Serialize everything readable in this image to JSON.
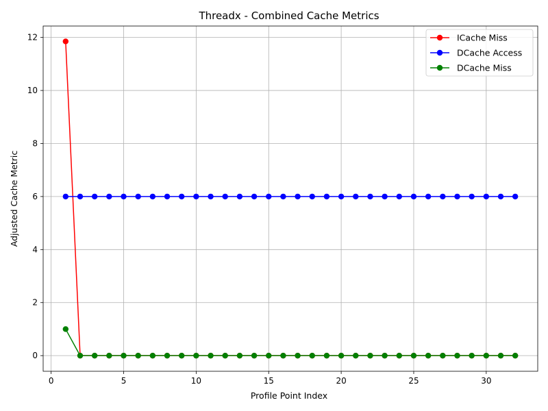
{
  "chart_data": {
    "type": "line",
    "title": "Threadx - Combined Cache Metrics",
    "xlabel": "Profile Point Index",
    "ylabel": "Adjusted Cache Metric",
    "xlim": [
      -0.55,
      33.55
    ],
    "ylim": [
      -0.59,
      12.43
    ],
    "xticks": [
      0,
      5,
      10,
      15,
      20,
      25,
      30
    ],
    "yticks": [
      0,
      2,
      4,
      6,
      8,
      10,
      12
    ],
    "grid": true,
    "legend_position": "top-right",
    "x": [
      1,
      2,
      3,
      4,
      5,
      6,
      7,
      8,
      9,
      10,
      11,
      12,
      13,
      14,
      15,
      16,
      17,
      18,
      19,
      20,
      21,
      22,
      23,
      24,
      25,
      26,
      27,
      28,
      29,
      30,
      31,
      32
    ],
    "series": [
      {
        "name": "ICache Miss",
        "color": "#ff0000",
        "values": [
          11.85,
          0,
          0,
          0,
          0,
          0,
          0,
          0,
          0,
          0,
          0,
          0,
          0,
          0,
          0,
          0,
          0,
          0,
          0,
          0,
          0,
          0,
          0,
          0,
          0,
          0,
          0,
          0,
          0,
          0,
          0,
          0
        ]
      },
      {
        "name": "DCache Access",
        "color": "#0000ff",
        "values": [
          6,
          6,
          6,
          6,
          6,
          6,
          6,
          6,
          6,
          6,
          6,
          6,
          6,
          6,
          6,
          6,
          6,
          6,
          6,
          6,
          6,
          6,
          6,
          6,
          6,
          6,
          6,
          6,
          6,
          6,
          6,
          6
        ]
      },
      {
        "name": "DCache Miss",
        "color": "#008000",
        "values": [
          1,
          0,
          0,
          0,
          0,
          0,
          0,
          0,
          0,
          0,
          0,
          0,
          0,
          0,
          0,
          0,
          0,
          0,
          0,
          0,
          0,
          0,
          0,
          0,
          0,
          0,
          0,
          0,
          0,
          0,
          0,
          0
        ]
      }
    ]
  }
}
